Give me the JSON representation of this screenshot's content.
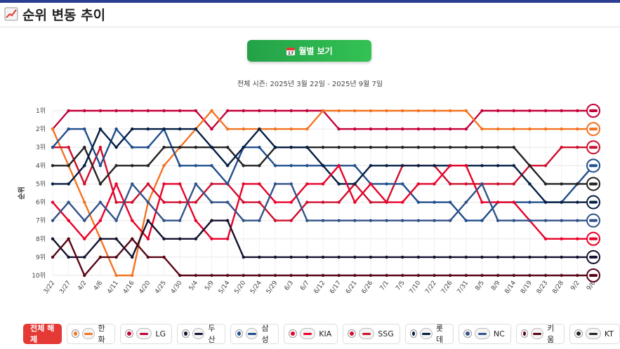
{
  "header": {
    "title": "순위 변동 추이"
  },
  "month_button": {
    "label": "월별 보기"
  },
  "season_text": "전체 시즌: 2025년 3월 22일 - 2025년 9월 7일",
  "legend": {
    "clear_label": "전체 해제",
    "teams": [
      {
        "name": "한화",
        "color": "#f37321"
      },
      {
        "name": "LG",
        "color": "#c30037"
      },
      {
        "name": "두산",
        "color": "#131230"
      },
      {
        "name": "삼성",
        "color": "#1f4e8c"
      },
      {
        "name": "KIA",
        "color": "#ea0029"
      },
      {
        "name": "SSG",
        "color": "#ce0e2d"
      },
      {
        "name": "롯데",
        "color": "#041e42"
      },
      {
        "name": "NC",
        "color": "#315288"
      },
      {
        "name": "키움",
        "color": "#570514"
      },
      {
        "name": "KT",
        "color": "#222222"
      }
    ]
  },
  "chart_data": {
    "type": "line",
    "ylabel": "순위",
    "y_ticks": [
      "1위",
      "2위",
      "3위",
      "4위",
      "5위",
      "6위",
      "7위",
      "8위",
      "9위",
      "10위"
    ],
    "x_ticks": [
      "3/22",
      "3/27",
      "4/2",
      "4/6",
      "4/11",
      "4/16",
      "4/20",
      "4/25",
      "4/30",
      "5/4",
      "5/9",
      "5/14",
      "5/20",
      "5/24",
      "5/29",
      "6/3",
      "6/7",
      "6/12",
      "6/17",
      "6/21",
      "6/26",
      "7/1",
      "7/5",
      "7/10",
      "7/22",
      "7/26",
      "7/31",
      "8/5",
      "8/9",
      "8/14",
      "8/19",
      "8/23",
      "8/28",
      "9/2",
      "9/6"
    ],
    "ylim": [
      1,
      10
    ],
    "series": [
      {
        "name": "LG",
        "color": "#c30037",
        "values": [
          2,
          1,
          1,
          1,
          1,
          1,
          1,
          1,
          1,
          1,
          2,
          1,
          1,
          1,
          1,
          1,
          1,
          1,
          2,
          2,
          2,
          2,
          2,
          2,
          2,
          2,
          2,
          1,
          1,
          1,
          1,
          1,
          1,
          1,
          1
        ]
      },
      {
        "name": "한화",
        "color": "#f37321",
        "values": [
          2,
          4,
          6,
          8,
          10,
          10,
          6,
          4,
          3,
          2,
          1,
          2,
          2,
          2,
          2,
          2,
          2,
          1,
          1,
          1,
          1,
          1,
          1,
          1,
          1,
          1,
          1,
          2,
          2,
          2,
          2,
          2,
          2,
          2,
          2
        ]
      },
      {
        "name": "SSG",
        "color": "#ce0e2d",
        "values": [
          3,
          3,
          5,
          3,
          6,
          6,
          5,
          6,
          6,
          6,
          5,
          5,
          6,
          6,
          7,
          7,
          6,
          6,
          6,
          5,
          6,
          6,
          4,
          4,
          4,
          5,
          5,
          5,
          5,
          5,
          4,
          4,
          3,
          3,
          3
        ]
      },
      {
        "name": "삼성",
        "color": "#1f4e8c",
        "values": [
          3,
          2,
          2,
          4,
          2,
          3,
          3,
          2,
          4,
          4,
          4,
          5,
          3,
          3,
          4,
          4,
          4,
          4,
          4,
          4,
          5,
          5,
          5,
          6,
          6,
          6,
          7,
          7,
          6,
          6,
          6,
          6,
          6,
          5,
          4
        ]
      },
      {
        "name": "KT",
        "color": "#222222",
        "values": [
          4,
          4,
          3,
          5,
          4,
          4,
          4,
          3,
          3,
          3,
          3,
          3,
          4,
          4,
          3,
          3,
          3,
          3,
          3,
          3,
          3,
          3,
          3,
          3,
          3,
          3,
          3,
          3,
          3,
          3,
          4,
          5,
          5,
          5,
          5
        ]
      },
      {
        "name": "롯데",
        "color": "#041e42",
        "values": [
          5,
          5,
          4,
          2,
          3,
          2,
          2,
          2,
          2,
          2,
          3,
          4,
          3,
          2,
          3,
          3,
          3,
          4,
          5,
          5,
          4,
          4,
          4,
          4,
          4,
          4,
          4,
          4,
          4,
          4,
          5,
          6,
          6,
          6,
          6
        ]
      },
      {
        "name": "KIA",
        "color": "#ea0029",
        "values": [
          6,
          7,
          8,
          7,
          5,
          7,
          8,
          5,
          5,
          7,
          8,
          8,
          5,
          5,
          6,
          6,
          5,
          5,
          4,
          6,
          5,
          6,
          6,
          5,
          5,
          4,
          4,
          6,
          6,
          6,
          7,
          8,
          8,
          8,
          8
        ]
      },
      {
        "name": "NC",
        "color": "#315288",
        "values": [
          7,
          6,
          7,
          6,
          7,
          5,
          6,
          7,
          7,
          5,
          6,
          6,
          7,
          7,
          5,
          5,
          7,
          7,
          7,
          7,
          7,
          7,
          7,
          7,
          7,
          7,
          6,
          5,
          7,
          7,
          7,
          7,
          7,
          7,
          7
        ]
      },
      {
        "name": "두산",
        "color": "#131230",
        "values": [
          8,
          9,
          9,
          8,
          8,
          9,
          7,
          8,
          8,
          8,
          7,
          7,
          9,
          9,
          9,
          9,
          9,
          9,
          9,
          9,
          9,
          9,
          9,
          9,
          9,
          9,
          9,
          9,
          9,
          9,
          9,
          9,
          9,
          9,
          9
        ]
      },
      {
        "name": "키움",
        "color": "#570514",
        "values": [
          9,
          8,
          10,
          9,
          9,
          8,
          9,
          9,
          10,
          10,
          10,
          10,
          10,
          10,
          10,
          10,
          10,
          10,
          10,
          10,
          10,
          10,
          10,
          10,
          10,
          10,
          10,
          10,
          10,
          10,
          10,
          10,
          10,
          10,
          10
        ]
      }
    ],
    "legend_position": "bottom",
    "grid": true
  }
}
